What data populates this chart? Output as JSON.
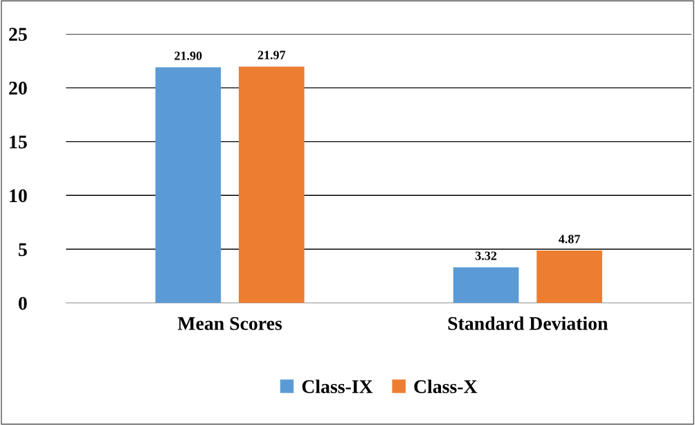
{
  "chart_data": {
    "type": "bar",
    "categories": [
      "Mean Scores",
      "Standard Deviation"
    ],
    "series": [
      {
        "name": "Class-IX",
        "color": "#5b9bd5",
        "values": [
          21.9,
          3.32
        ],
        "value_labels": [
          "21.90",
          "3.32"
        ]
      },
      {
        "name": "Class-X",
        "color": "#ed7d31",
        "values": [
          21.97,
          4.87
        ],
        "value_labels": [
          "21.97",
          "4.87"
        ]
      }
    ],
    "ylim": [
      0,
      25
    ],
    "yticks": [
      0,
      5,
      10,
      15,
      20,
      25
    ],
    "grid": "y",
    "legend": "bottom"
  }
}
